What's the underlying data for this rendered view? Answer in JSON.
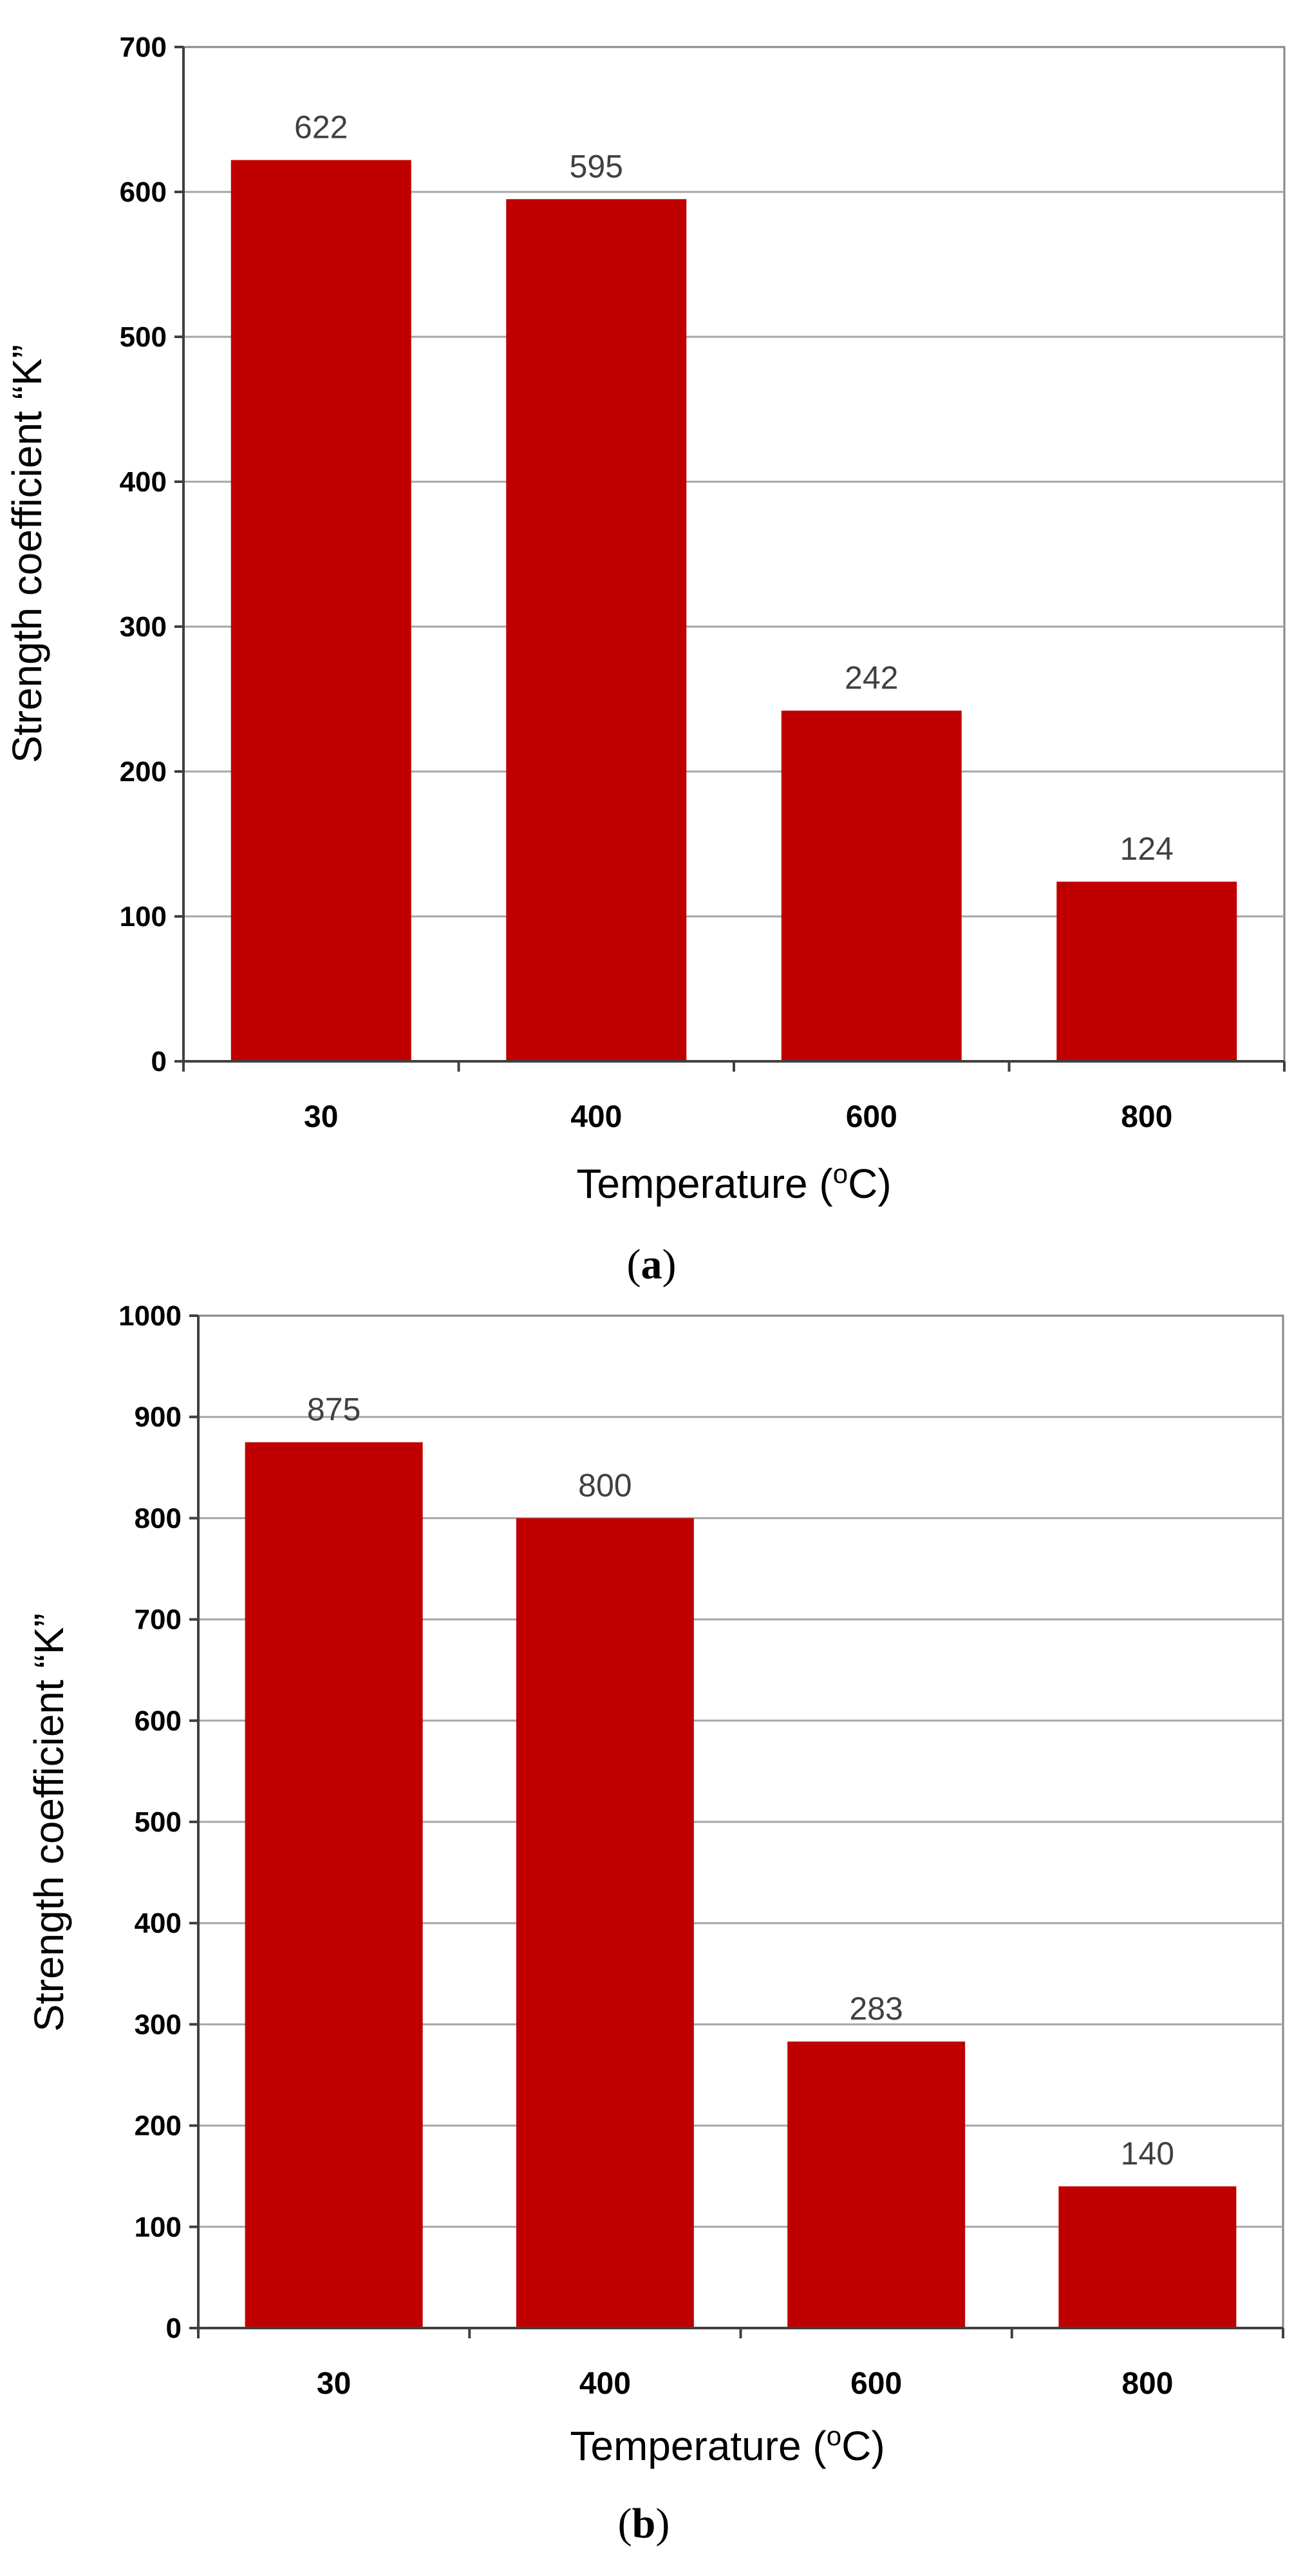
{
  "chart_data": [
    {
      "type": "bar",
      "panel_label": "a",
      "categories": [
        "30",
        "400",
        "600",
        "800"
      ],
      "values": [
        622,
        595,
        242,
        124
      ],
      "data_labels": [
        "622",
        "595",
        "242",
        "124"
      ],
      "xlabel": "Temperature (",
      "xlabel_unit_sup": "o",
      "xlabel_unit": "C)",
      "ylabel": "Strength coefficient “K”",
      "ylim": [
        0,
        700
      ],
      "yticks": [
        0,
        100,
        200,
        300,
        400,
        500,
        600,
        700
      ],
      "grid": true,
      "legend": "none",
      "bar_color": "#c00000"
    },
    {
      "type": "bar",
      "panel_label": "b",
      "categories": [
        "30",
        "400",
        "600",
        "800"
      ],
      "values": [
        875,
        800,
        283,
        140
      ],
      "data_labels": [
        "875",
        "800",
        "283",
        "140"
      ],
      "xlabel": "Temperature (",
      "xlabel_unit_sup": "o",
      "xlabel_unit": "C)",
      "ylabel": "Strength coefficient “K”",
      "ylim": [
        0,
        1000
      ],
      "yticks": [
        0,
        100,
        200,
        300,
        400,
        500,
        600,
        700,
        800,
        900,
        1000
      ],
      "grid": true,
      "legend": "none",
      "bar_color": "#c00000"
    }
  ],
  "captions": {
    "a": {
      "open": "(",
      "letter": "a",
      "close": ")"
    },
    "b": {
      "open": "(",
      "letter": "b",
      "close": ")"
    }
  }
}
